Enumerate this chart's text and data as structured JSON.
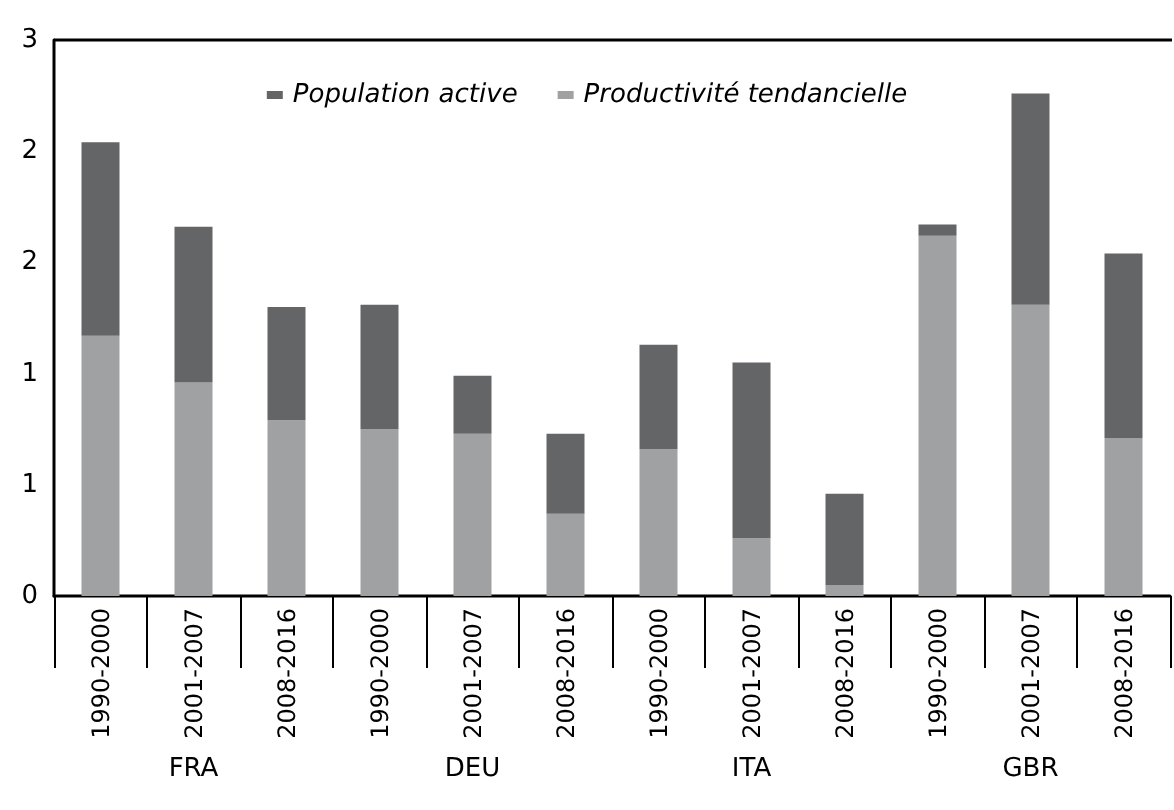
{
  "chart_data": {
    "type": "bar",
    "stacked": true,
    "categories": [
      "1990-2000",
      "2001-2007",
      "2008-2016",
      "1990-2000",
      "2001-2007",
      "2008-2016",
      "1990-2000",
      "2001-2007",
      "2008-2016",
      "1990-2000",
      "2001-2007",
      "2008-2016"
    ],
    "series": [
      {
        "name": "Productivité tendancielle",
        "color": "#a0a1a3",
        "values": [
          1.17,
          0.96,
          0.79,
          0.75,
          0.73,
          0.37,
          0.66,
          0.26,
          0.05,
          1.62,
          1.31,
          0.71
        ]
      },
      {
        "name": "Population active",
        "color": "#646567",
        "values": [
          0.87,
          0.7,
          0.51,
          0.56,
          0.26,
          0.36,
          0.47,
          0.79,
          0.41,
          0.05,
          0.95,
          0.83
        ]
      }
    ],
    "annotations": [
      "FRA",
      "DEU",
      "ITA",
      "GBR"
    ],
    "ylim": [
      0,
      2.5
    ],
    "yticks": [
      0,
      {
        "value": 0.5,
        "label": "1"
      },
      {
        "value": 1,
        "label": "1"
      },
      {
        "value": 1.5,
        "label": "2"
      },
      {
        "value": 2,
        "label": "2"
      },
      {
        "value": 2.5,
        "label": "3"
      }
    ],
    "legend": "top",
    "grid": false
  }
}
